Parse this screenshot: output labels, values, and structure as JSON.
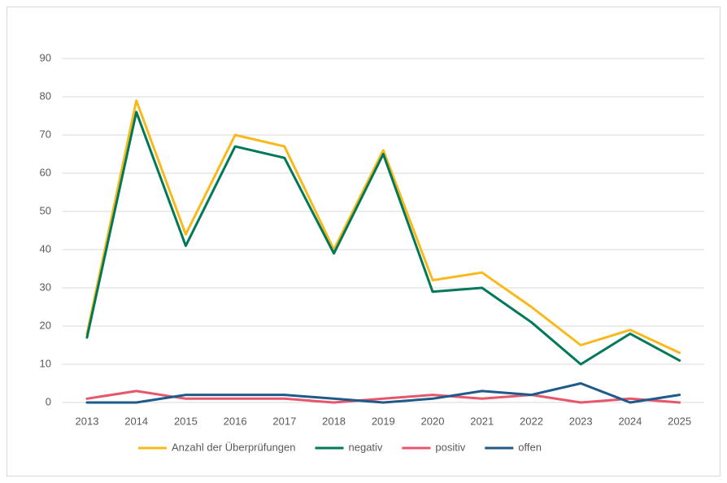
{
  "chart_data": {
    "type": "line",
    "categories": [
      "2013",
      "2014",
      "2015",
      "2016",
      "2017",
      "2018",
      "2019",
      "2020",
      "2021",
      "2022",
      "2023",
      "2024",
      "2025"
    ],
    "series": [
      {
        "name": "Anzahl der Überprüfungen",
        "color": "#f8b91c",
        "values": [
          18,
          79,
          44,
          70,
          67,
          40,
          66,
          32,
          34,
          25,
          15,
          19,
          13
        ]
      },
      {
        "name": "negativ",
        "color": "#00785a",
        "values": [
          17,
          76,
          41,
          67,
          64,
          39,
          65,
          29,
          30,
          21,
          10,
          18,
          11
        ]
      },
      {
        "name": "positiv",
        "color": "#e8566b",
        "values": [
          1,
          3,
          1,
          1,
          1,
          0,
          1,
          2,
          1,
          2,
          0,
          1,
          0
        ]
      },
      {
        "name": "offen",
        "color": "#1e5a8a",
        "values": [
          0,
          0,
          2,
          2,
          2,
          1,
          0,
          1,
          3,
          2,
          5,
          0,
          2
        ]
      }
    ],
    "ylim": [
      0,
      90
    ],
    "yticks": [
      0,
      10,
      20,
      30,
      40,
      50,
      60,
      70,
      80,
      90
    ],
    "grid": true,
    "legend": "bottom"
  }
}
